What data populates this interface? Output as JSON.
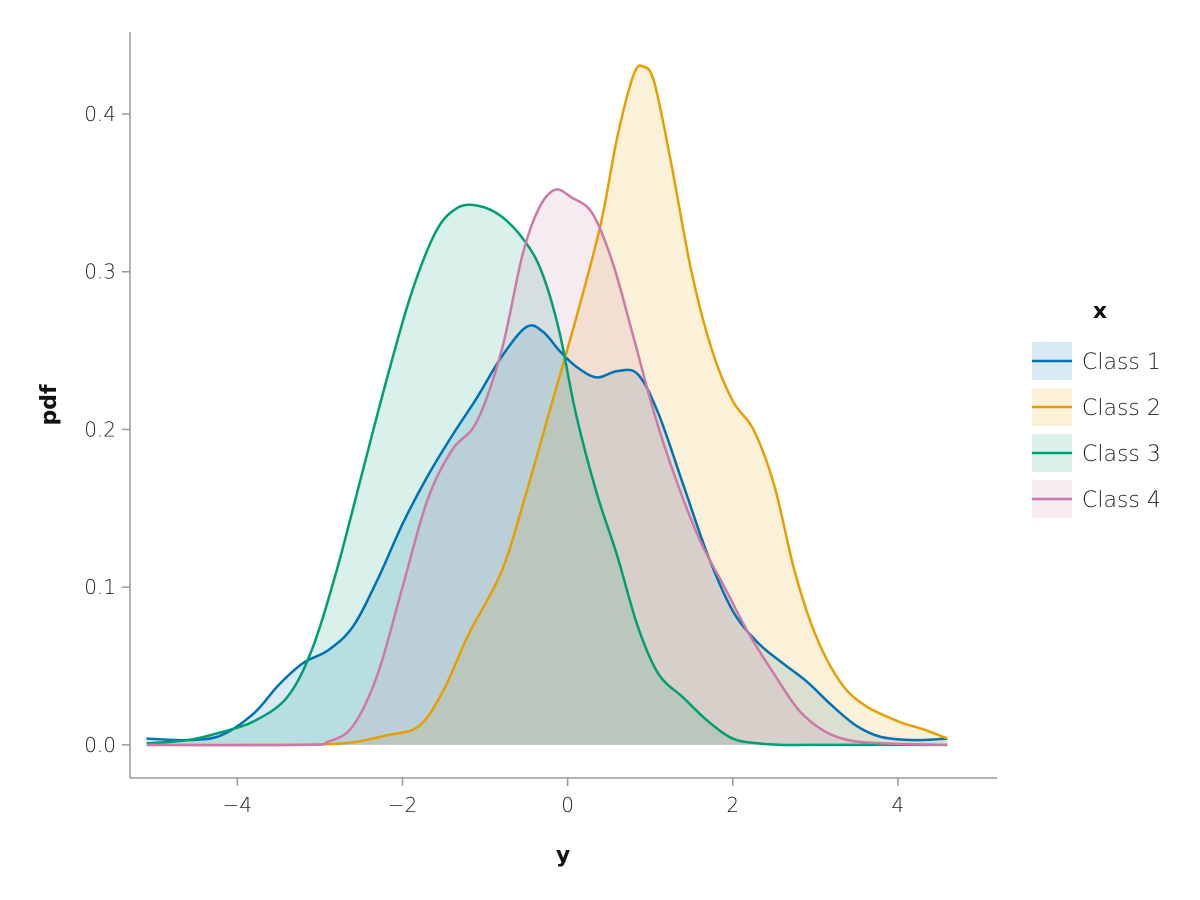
{
  "chart_data": {
    "type": "area",
    "title": "",
    "xlabel": "y",
    "ylabel": "pdf",
    "xlim": [
      -5.3,
      5.2
    ],
    "ylim": [
      -0.021,
      0.452
    ],
    "xticks": [
      -4,
      -2,
      0,
      2,
      4
    ],
    "xtick_labels": [
      "−4",
      "−2",
      "0",
      "2",
      "4"
    ],
    "yticks": [
      0.0,
      0.1,
      0.2,
      0.3,
      0.4
    ],
    "ytick_labels": [
      "0.0",
      "0.1",
      "0.2",
      "0.3",
      "0.4"
    ],
    "grid": false,
    "legend": {
      "title": "x",
      "position": "right"
    },
    "series": [
      {
        "name": "Class 1",
        "color": "#0072b2",
        "points": [
          [
            -5.1,
            0.004
          ],
          [
            -4.6,
            0.003
          ],
          [
            -4.2,
            0.006
          ],
          [
            -3.8,
            0.02
          ],
          [
            -3.5,
            0.038
          ],
          [
            -3.2,
            0.052
          ],
          [
            -2.9,
            0.06
          ],
          [
            -2.6,
            0.075
          ],
          [
            -2.3,
            0.105
          ],
          [
            -2.0,
            0.14
          ],
          [
            -1.7,
            0.17
          ],
          [
            -1.4,
            0.196
          ],
          [
            -1.1,
            0.22
          ],
          [
            -0.8,
            0.246
          ],
          [
            -0.5,
            0.265
          ],
          [
            -0.3,
            0.262
          ],
          [
            -0.1,
            0.25
          ],
          [
            0.1,
            0.24
          ],
          [
            0.35,
            0.233
          ],
          [
            0.6,
            0.237
          ],
          [
            0.85,
            0.235
          ],
          [
            1.1,
            0.21
          ],
          [
            1.4,
            0.165
          ],
          [
            1.7,
            0.12
          ],
          [
            2.0,
            0.085
          ],
          [
            2.3,
            0.065
          ],
          [
            2.6,
            0.052
          ],
          [
            2.9,
            0.04
          ],
          [
            3.2,
            0.025
          ],
          [
            3.5,
            0.012
          ],
          [
            3.8,
            0.005
          ],
          [
            4.2,
            0.003
          ],
          [
            4.6,
            0.004
          ]
        ]
      },
      {
        "name": "Class 2",
        "color": "#e69f00",
        "points": [
          [
            -5.1,
            0.0
          ],
          [
            -3.5,
            0.0
          ],
          [
            -2.7,
            0.001
          ],
          [
            -2.2,
            0.006
          ],
          [
            -1.8,
            0.012
          ],
          [
            -1.5,
            0.035
          ],
          [
            -1.2,
            0.07
          ],
          [
            -0.8,
            0.11
          ],
          [
            -0.5,
            0.16
          ],
          [
            -0.2,
            0.215
          ],
          [
            0.1,
            0.27
          ],
          [
            0.4,
            0.33
          ],
          [
            0.6,
            0.385
          ],
          [
            0.8,
            0.425
          ],
          [
            0.92,
            0.43
          ],
          [
            1.05,
            0.42
          ],
          [
            1.25,
            0.37
          ],
          [
            1.5,
            0.3
          ],
          [
            1.75,
            0.25
          ],
          [
            2.0,
            0.218
          ],
          [
            2.25,
            0.2
          ],
          [
            2.5,
            0.165
          ],
          [
            2.75,
            0.11
          ],
          [
            3.0,
            0.07
          ],
          [
            3.3,
            0.04
          ],
          [
            3.6,
            0.025
          ],
          [
            4.0,
            0.015
          ],
          [
            4.3,
            0.01
          ],
          [
            4.6,
            0.004
          ]
        ]
      },
      {
        "name": "Class 3",
        "color": "#009e73",
        "points": [
          [
            -5.1,
            0.001
          ],
          [
            -4.6,
            0.003
          ],
          [
            -4.2,
            0.008
          ],
          [
            -3.8,
            0.015
          ],
          [
            -3.4,
            0.03
          ],
          [
            -3.1,
            0.06
          ],
          [
            -2.8,
            0.11
          ],
          [
            -2.5,
            0.17
          ],
          [
            -2.2,
            0.23
          ],
          [
            -1.9,
            0.285
          ],
          [
            -1.6,
            0.325
          ],
          [
            -1.35,
            0.34
          ],
          [
            -1.1,
            0.342
          ],
          [
            -0.8,
            0.335
          ],
          [
            -0.5,
            0.318
          ],
          [
            -0.3,
            0.298
          ],
          [
            -0.1,
            0.262
          ],
          [
            0.1,
            0.21
          ],
          [
            0.35,
            0.16
          ],
          [
            0.6,
            0.12
          ],
          [
            0.85,
            0.075
          ],
          [
            1.1,
            0.045
          ],
          [
            1.4,
            0.03
          ],
          [
            1.7,
            0.015
          ],
          [
            2.0,
            0.004
          ],
          [
            2.3,
            0.001
          ],
          [
            2.6,
            0.0
          ],
          [
            3.0,
            0.0
          ],
          [
            4.6,
            0.0
          ]
        ]
      },
      {
        "name": "Class 4",
        "color": "#cc79a7",
        "points": [
          [
            -5.1,
            0.0
          ],
          [
            -3.2,
            0.0
          ],
          [
            -2.9,
            0.002
          ],
          [
            -2.6,
            0.012
          ],
          [
            -2.3,
            0.045
          ],
          [
            -2.0,
            0.1
          ],
          [
            -1.7,
            0.155
          ],
          [
            -1.4,
            0.187
          ],
          [
            -1.1,
            0.205
          ],
          [
            -0.8,
            0.25
          ],
          [
            -0.55,
            0.31
          ],
          [
            -0.35,
            0.34
          ],
          [
            -0.15,
            0.352
          ],
          [
            0.05,
            0.347
          ],
          [
            0.3,
            0.337
          ],
          [
            0.55,
            0.305
          ],
          [
            0.8,
            0.258
          ],
          [
            1.05,
            0.21
          ],
          [
            1.3,
            0.17
          ],
          [
            1.6,
            0.13
          ],
          [
            1.9,
            0.1
          ],
          [
            2.2,
            0.07
          ],
          [
            2.5,
            0.045
          ],
          [
            2.8,
            0.022
          ],
          [
            3.1,
            0.009
          ],
          [
            3.4,
            0.003
          ],
          [
            3.8,
            0.001
          ],
          [
            4.6,
            0.0
          ]
        ]
      }
    ]
  }
}
